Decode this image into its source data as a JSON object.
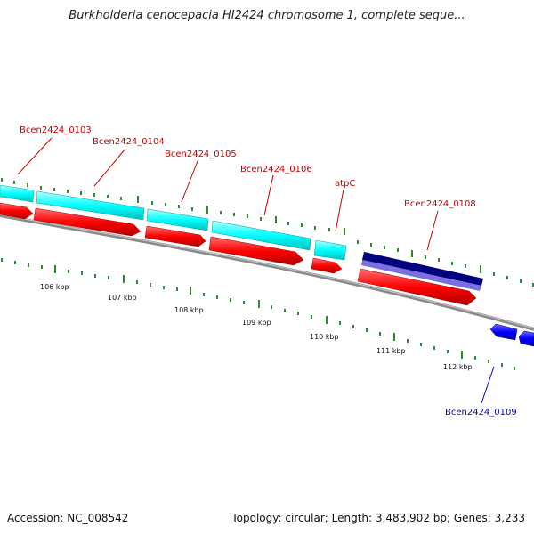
{
  "header": {
    "title": "Burkholderia cenocepacia HI2424 chromosome 1, complete seque..."
  },
  "footer": {
    "accession": "Accession: NC_008542",
    "topology": "Topology: circular; Length: 3,483,902 bp; Genes: 3,233"
  },
  "colors": {
    "forward_cds": "#ff0000",
    "forward_gene": "#00ffff",
    "reverse_cds": "#0000ff",
    "reverse_gene_dark": "#000080",
    "reverse_gene_light": "#7b68ee",
    "label_forward": "#cc0000",
    "label_reverse": "#0000cc",
    "ticks": "#228b22",
    "backbone": "#808080"
  },
  "gene_labels": [
    {
      "name": "Bcen2424_0103",
      "strand": "forward"
    },
    {
      "name": "Bcen2424_0104",
      "strand": "forward"
    },
    {
      "name": "Bcen2424_0105",
      "strand": "forward"
    },
    {
      "name": "Bcen2424_0106",
      "strand": "forward"
    },
    {
      "name": "atpC",
      "strand": "forward"
    },
    {
      "name": "Bcen2424_0108",
      "strand": "forward"
    },
    {
      "name": "Bcen2424_0109",
      "strand": "reverse"
    }
  ],
  "scale": {
    "labels": [
      "106 kbp",
      "107 kbp",
      "108 kbp",
      "109 kbp",
      "110 kbp",
      "111 kbp",
      "112 kbp"
    ]
  }
}
